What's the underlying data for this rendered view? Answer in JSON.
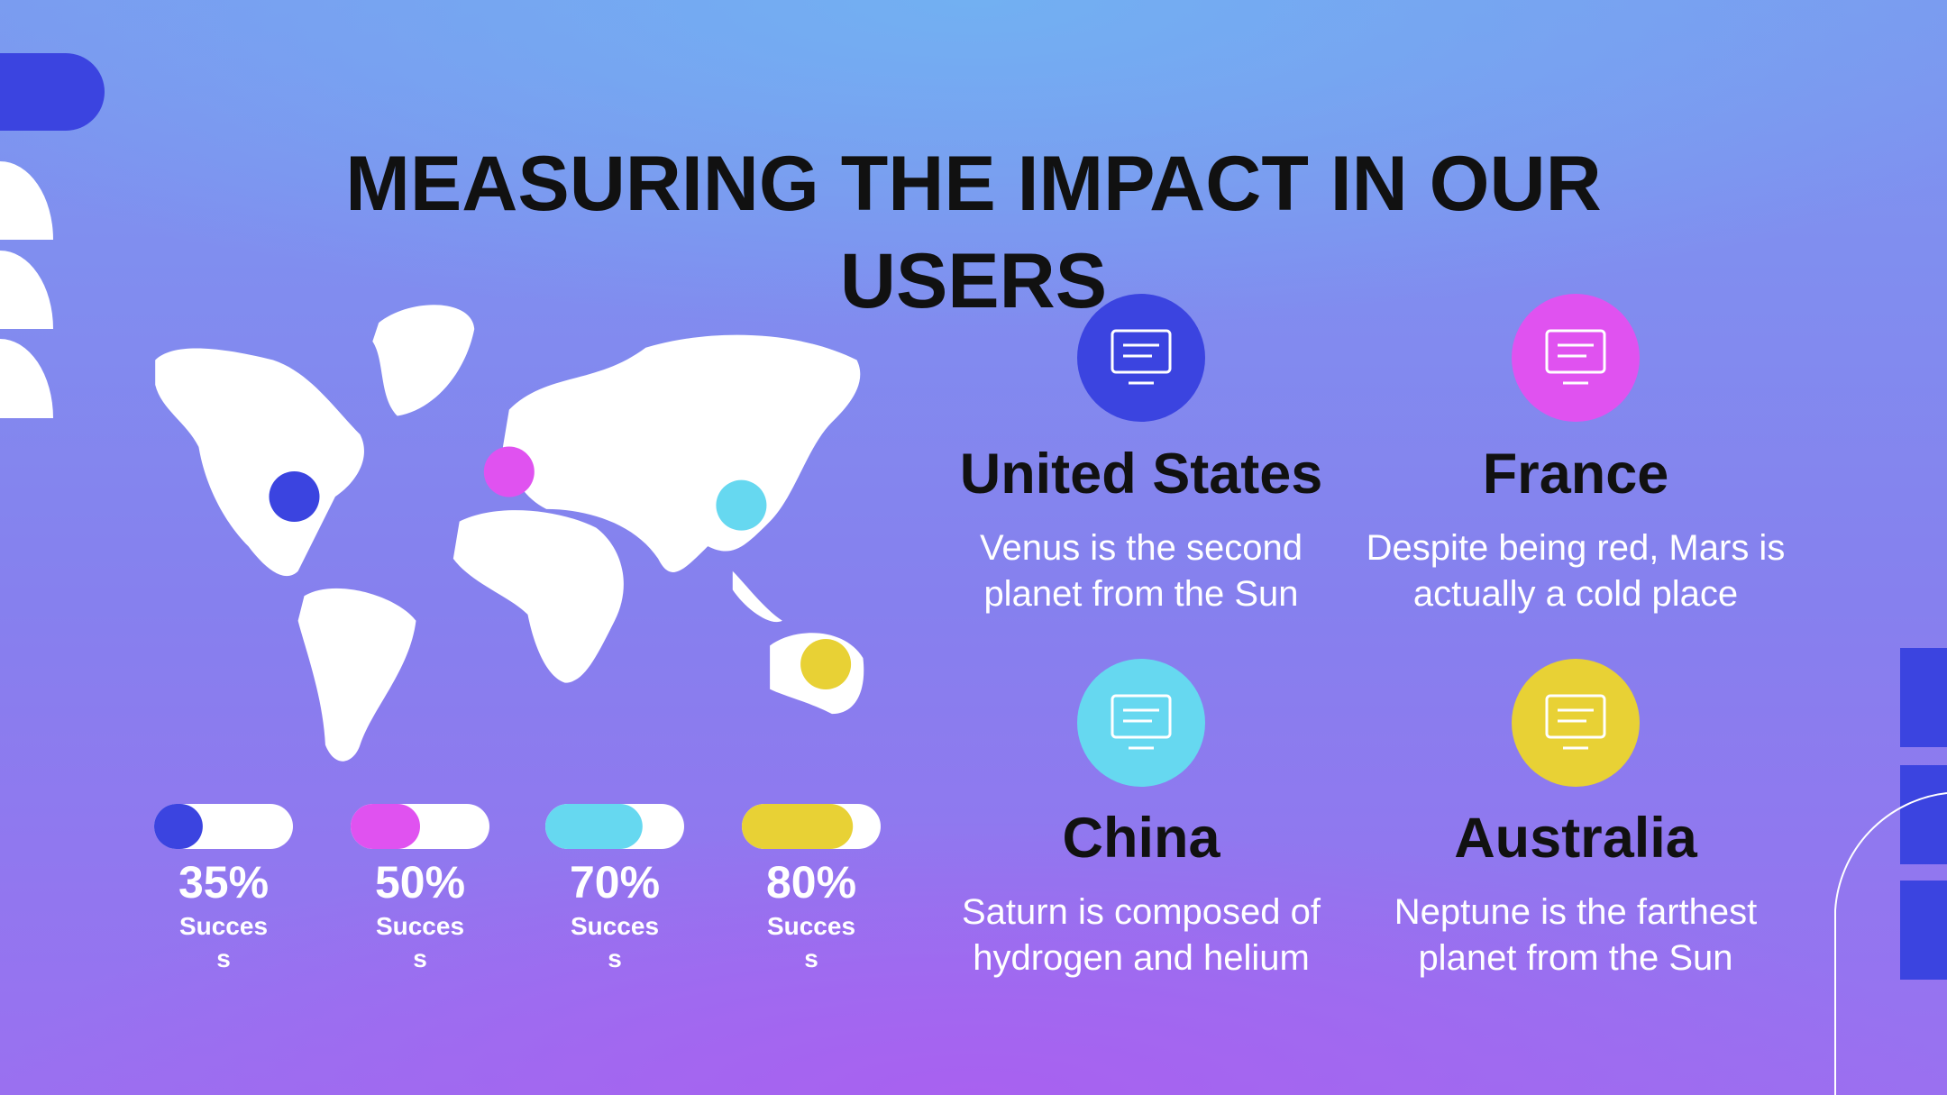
{
  "title": "MEASURING THE IMPACT IN OUR USERS",
  "progress": [
    {
      "value": 35,
      "label": "35%",
      "caption": "Success",
      "color": "#3b44e0"
    },
    {
      "value": 50,
      "label": "50%",
      "caption": "Success",
      "color": "#e052f0"
    },
    {
      "value": 70,
      "label": "70%",
      "caption": "Success",
      "color": "#66d8f0"
    },
    {
      "value": 80,
      "label": "80%",
      "caption": "Success",
      "color": "#e8d135"
    }
  ],
  "cards": [
    {
      "name": "United States",
      "text": "Venus is the second planet from the Sun",
      "color": "#3b44e0"
    },
    {
      "name": "France",
      "text": "Despite being red, Mars is actually a cold place",
      "color": "#e052f0"
    },
    {
      "name": "China",
      "text": "Saturn is composed of hydrogen and helium",
      "color": "#66d8f0"
    },
    {
      "name": "Australia",
      "text": "Neptune is the farthest planet from the Sun",
      "color": "#e8d135"
    }
  ]
}
